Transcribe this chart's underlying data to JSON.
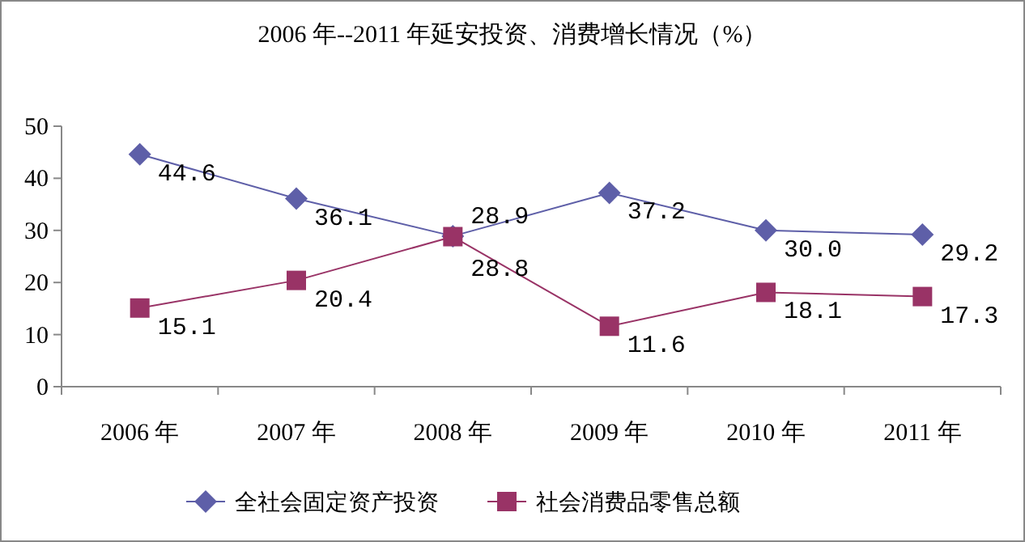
{
  "chart_data": {
    "type": "line",
    "title": "2006 年--2011 年延安投资、消费增长情况（%）",
    "categories": [
      "2006 年",
      "2007 年",
      "2008 年",
      "2009 年",
      "2010 年",
      "2011 年"
    ],
    "series": [
      {
        "name": "全社会固定资产投资",
        "color": "#5e5fa8",
        "marker": "diamond",
        "values": [
          44.6,
          36.1,
          28.9,
          37.2,
          30.0,
          29.2
        ],
        "value_labels": [
          "44.6",
          "36.1",
          "28.9",
          "37.2",
          "30.0",
          "29.2"
        ]
      },
      {
        "name": "社会消费品零售总额",
        "color": "#993366",
        "marker": "square",
        "values": [
          15.1,
          20.4,
          28.8,
          11.6,
          18.1,
          17.3
        ],
        "value_labels": [
          "15.1",
          "20.4",
          "28.8",
          "11.6",
          "18.1",
          "17.3"
        ]
      }
    ],
    "ylim": [
      0,
      50
    ],
    "yticks": [
      0,
      10,
      20,
      30,
      40,
      50
    ],
    "grid": false,
    "legend": "bottom",
    "line_style": "solid"
  }
}
